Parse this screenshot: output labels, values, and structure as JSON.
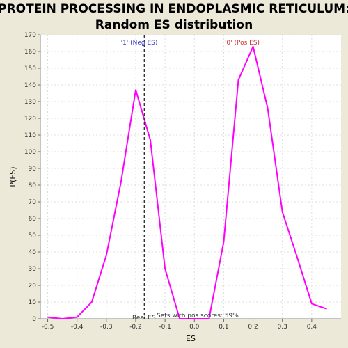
{
  "chart_data": {
    "type": "line",
    "title": "PROTEIN PROCESSING IN ENDOPLASMIC RETICULUM:",
    "subtitle": "Random ES distribution",
    "xlabel": "ES",
    "ylabel": "P(ES)",
    "xlim": [
      -0.525,
      0.5
    ],
    "ylim": [
      0,
      170
    ],
    "x_ticks": [
      "-0.5",
      "-0.4",
      "-0.3",
      "-0.2",
      "-0.1",
      "0.0",
      "0.1",
      "0.2",
      "0.3",
      "0.4"
    ],
    "x_tick_values": [
      -0.5,
      -0.4,
      -0.3,
      -0.2,
      -0.1,
      0.0,
      0.1,
      0.2,
      0.3,
      0.4
    ],
    "y_ticks": [
      "0",
      "10",
      "20",
      "30",
      "40",
      "50",
      "60",
      "70",
      "80",
      "90",
      "100",
      "110",
      "120",
      "130",
      "140",
      "150",
      "160",
      "170"
    ],
    "y_tick_values": [
      0,
      10,
      20,
      30,
      40,
      50,
      60,
      70,
      80,
      90,
      100,
      110,
      120,
      130,
      140,
      150,
      160,
      170
    ],
    "grid": true,
    "series": [
      {
        "color": "#ff00ff",
        "x": [
          -0.5,
          -0.45,
          -0.4,
          -0.35,
          -0.3,
          -0.25,
          -0.2,
          -0.15,
          -0.1,
          -0.05,
          0.0,
          0.05,
          0.1,
          0.15,
          0.2,
          0.25,
          0.3,
          0.35,
          0.4,
          0.45
        ],
        "y": [
          1,
          0,
          1,
          10,
          38,
          82,
          137,
          107,
          30,
          0,
          0,
          0,
          46,
          143,
          163,
          126,
          64,
          37,
          9,
          6
        ]
      }
    ],
    "real_es": {
      "x": -0.17,
      "label": "Real ES"
    },
    "annotations": {
      "neg_label": "'1' (Neg ES)",
      "pos_label": "'0' (Pos ES)",
      "pos_scores_text": "Sets with pos scores: 59%",
      "neg_color": "#3333cc",
      "pos_color": "#cc3333"
    },
    "colors": {
      "background": "#ece9d8",
      "plot_background": "#ffffff",
      "grid": "#dddddd",
      "line": "#ff00ff",
      "marker_line": "#333333"
    }
  }
}
